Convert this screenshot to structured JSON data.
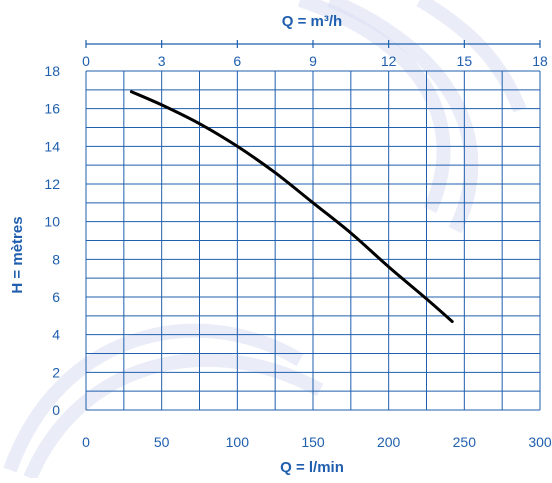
{
  "chart_data": {
    "type": "line",
    "title_top": "Q = m³/h",
    "xlabel": "Q = l/min",
    "ylabel": "H = mètres",
    "xlim": [
      0,
      300
    ],
    "ylim": [
      0,
      18
    ],
    "xticks": [
      "0",
      "50",
      "100",
      "150",
      "200",
      "250",
      "300"
    ],
    "top_xticks": [
      "0",
      "3",
      "6",
      "9",
      "12",
      "15",
      "18"
    ],
    "yticks": [
      "0",
      "2",
      "4",
      "6",
      "8",
      "10",
      "12",
      "14",
      "16",
      "18"
    ],
    "grid": true,
    "series": [
      {
        "x": [
          30,
          50,
          75,
          100,
          125,
          150,
          175,
          200,
          225,
          242
        ],
        "y": [
          16.9,
          16.2,
          15.2,
          14.0,
          12.6,
          11.0,
          9.4,
          7.6,
          5.9,
          4.7
        ]
      }
    ],
    "colors": {
      "text": "#1f5fae",
      "grid": "#1f5fae",
      "curve": "#000000",
      "swirl": "#d9def2"
    }
  }
}
